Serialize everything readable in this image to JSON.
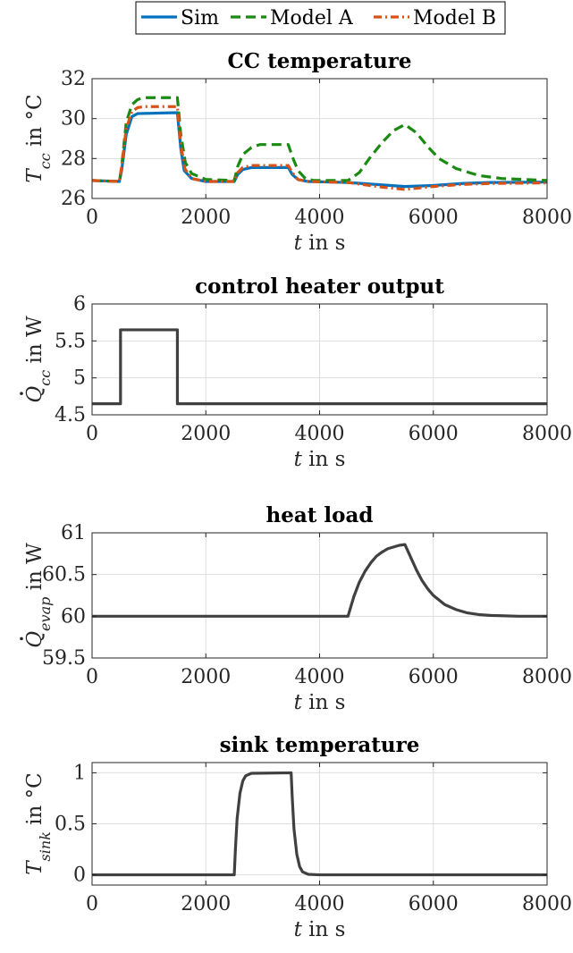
{
  "legend": {
    "entries": [
      {
        "label": "Sim",
        "color": "#0072BD",
        "dash": "solid"
      },
      {
        "label": "Model A",
        "color": "#1B8A12",
        "dash": "dashed"
      },
      {
        "label": "Model B",
        "color": "#D95319",
        "dash": "dashdot"
      }
    ]
  },
  "chart_data": [
    {
      "type": "line",
      "title": "CC temperature",
      "ylabel": {
        "symbol": "T",
        "sub": "cc",
        "unit": " in °C"
      },
      "xlabel": {
        "symbol": "t",
        "unit": " in s"
      },
      "xlim": [
        0,
        8000
      ],
      "ylim": [
        26,
        32
      ],
      "xticks": [
        0,
        2000,
        4000,
        6000,
        8000
      ],
      "yticks": [
        26,
        28,
        30,
        32
      ],
      "grid": true,
      "series": [
        {
          "name": "Sim",
          "color": "#0072BD",
          "dash": "solid",
          "points": [
            [
              0,
              26.9
            ],
            [
              480,
              26.85
            ],
            [
              520,
              27.4
            ],
            [
              600,
              29.2
            ],
            [
              700,
              30.1
            ],
            [
              800,
              30.25
            ],
            [
              1500,
              30.3
            ],
            [
              1560,
              28.5
            ],
            [
              1620,
              27.4
            ],
            [
              1750,
              27.0
            ],
            [
              2000,
              26.85
            ],
            [
              2500,
              26.85
            ],
            [
              2560,
              27.2
            ],
            [
              2650,
              27.45
            ],
            [
              2800,
              27.55
            ],
            [
              3450,
              27.55
            ],
            [
              3520,
              27.2
            ],
            [
              3620,
              26.95
            ],
            [
              3800,
              26.85
            ],
            [
              4500,
              26.8
            ],
            [
              5000,
              26.7
            ],
            [
              5500,
              26.6
            ],
            [
              6000,
              26.65
            ],
            [
              6500,
              26.75
            ],
            [
              7000,
              26.8
            ],
            [
              8000,
              26.82
            ]
          ]
        },
        {
          "name": "Model A",
          "color": "#1B8A12",
          "dash": "dashed",
          "points": [
            [
              0,
              26.9
            ],
            [
              480,
              26.85
            ],
            [
              520,
              27.6
            ],
            [
              600,
              29.8
            ],
            [
              700,
              30.7
            ],
            [
              800,
              30.95
            ],
            [
              900,
              31.05
            ],
            [
              1500,
              31.05
            ],
            [
              1560,
              29.2
            ],
            [
              1640,
              27.8
            ],
            [
              1750,
              27.25
            ],
            [
              2000,
              26.95
            ],
            [
              2500,
              26.9
            ],
            [
              2560,
              27.6
            ],
            [
              2650,
              28.2
            ],
            [
              2800,
              28.55
            ],
            [
              2950,
              28.7
            ],
            [
              3450,
              28.7
            ],
            [
              3520,
              28.1
            ],
            [
              3620,
              27.4
            ],
            [
              3750,
              27.0
            ],
            [
              3900,
              26.9
            ],
            [
              4500,
              26.9
            ],
            [
              4700,
              27.3
            ],
            [
              4900,
              28.1
            ],
            [
              5100,
              28.8
            ],
            [
              5300,
              29.4
            ],
            [
              5500,
              29.7
            ],
            [
              5700,
              29.3
            ],
            [
              5900,
              28.6
            ],
            [
              6100,
              28.0
            ],
            [
              6400,
              27.5
            ],
            [
              6800,
              27.15
            ],
            [
              7200,
              27.0
            ],
            [
              8000,
              26.9
            ]
          ]
        },
        {
          "name": "Model B",
          "color": "#D95319",
          "dash": "dashdot",
          "points": [
            [
              0,
              26.9
            ],
            [
              480,
              26.85
            ],
            [
              520,
              27.6
            ],
            [
              600,
              29.5
            ],
            [
              700,
              30.35
            ],
            [
              800,
              30.55
            ],
            [
              900,
              30.6
            ],
            [
              1500,
              30.6
            ],
            [
              1560,
              28.7
            ],
            [
              1630,
              27.5
            ],
            [
              1750,
              27.0
            ],
            [
              2000,
              26.85
            ],
            [
              2500,
              26.85
            ],
            [
              2560,
              27.3
            ],
            [
              2650,
              27.55
            ],
            [
              2800,
              27.65
            ],
            [
              3450,
              27.65
            ],
            [
              3520,
              27.3
            ],
            [
              3620,
              26.95
            ],
            [
              3800,
              26.85
            ],
            [
              4500,
              26.8
            ],
            [
              5000,
              26.6
            ],
            [
              5500,
              26.45
            ],
            [
              6000,
              26.6
            ],
            [
              6500,
              26.7
            ],
            [
              7000,
              26.75
            ],
            [
              8000,
              26.78
            ]
          ]
        }
      ]
    },
    {
      "type": "line",
      "title": "control heater output",
      "ylabel": {
        "symbol": "Q",
        "dot": true,
        "sub": "cc",
        "unit": " in W"
      },
      "xlabel": {
        "symbol": "t",
        "unit": " in s"
      },
      "xlim": [
        0,
        8000
      ],
      "ylim": [
        4.5,
        6
      ],
      "xticks": [
        0,
        2000,
        4000,
        6000,
        8000
      ],
      "yticks": [
        4.5,
        5,
        5.5,
        6
      ],
      "grid": true,
      "series": [
        {
          "color": "#404040",
          "dash": "solid",
          "points": [
            [
              0,
              4.65
            ],
            [
              500,
              4.65
            ],
            [
              500,
              5.65
            ],
            [
              1500,
              5.65
            ],
            [
              1500,
              4.65
            ],
            [
              8000,
              4.65
            ]
          ]
        }
      ]
    },
    {
      "type": "line",
      "title": "heat load",
      "ylabel": {
        "symbol": "Q",
        "dot": true,
        "sub": "evap",
        "unit": " in W"
      },
      "xlabel": {
        "symbol": "t",
        "unit": " in s"
      },
      "xlim": [
        0,
        8000
      ],
      "ylim": [
        59.5,
        61
      ],
      "xticks": [
        0,
        2000,
        4000,
        6000,
        8000
      ],
      "yticks": [
        59.5,
        60,
        60.5,
        61
      ],
      "grid": true,
      "series": [
        {
          "color": "#404040",
          "dash": "solid",
          "points": [
            [
              0,
              60
            ],
            [
              4500,
              60
            ],
            [
              4600,
              60.23
            ],
            [
              4700,
              60.41
            ],
            [
              4800,
              60.54
            ],
            [
              4900,
              60.64
            ],
            [
              5000,
              60.72
            ],
            [
              5100,
              60.77
            ],
            [
              5200,
              60.81
            ],
            [
              5300,
              60.83
            ],
            [
              5400,
              60.85
            ],
            [
              5500,
              60.86
            ],
            [
              5600,
              60.71
            ],
            [
              5700,
              60.56
            ],
            [
              5800,
              60.43
            ],
            [
              5900,
              60.33
            ],
            [
              6000,
              60.25
            ],
            [
              6200,
              60.14
            ],
            [
              6400,
              60.08
            ],
            [
              6600,
              60.04
            ],
            [
              6800,
              60.02
            ],
            [
              7000,
              60.01
            ],
            [
              7500,
              60.0
            ],
            [
              8000,
              60.0
            ]
          ]
        }
      ]
    },
    {
      "type": "line",
      "title": "sink temperature",
      "ylabel": {
        "symbol": "T",
        "sub": "sink",
        "unit": " in °C"
      },
      "xlabel": {
        "symbol": "t",
        "unit": " in s"
      },
      "xlim": [
        0,
        8000
      ],
      "ylim": [
        -0.1,
        1.1
      ],
      "xticks": [
        0,
        2000,
        4000,
        6000,
        8000
      ],
      "yticks": [
        0,
        0.5,
        1
      ],
      "grid": true,
      "series": [
        {
          "color": "#404040",
          "dash": "solid",
          "points": [
            [
              0,
              0
            ],
            [
              2500,
              0
            ],
            [
              2520,
              0.25
            ],
            [
              2550,
              0.55
            ],
            [
              2600,
              0.8
            ],
            [
              2650,
              0.92
            ],
            [
              2700,
              0.97
            ],
            [
              2800,
              0.995
            ],
            [
              3500,
              1.0
            ],
            [
              3520,
              0.75
            ],
            [
              3550,
              0.45
            ],
            [
              3600,
              0.2
            ],
            [
              3650,
              0.08
            ],
            [
              3700,
              0.03
            ],
            [
              3800,
              0.005
            ],
            [
              4000,
              0
            ],
            [
              8000,
              0
            ]
          ]
        }
      ]
    }
  ]
}
